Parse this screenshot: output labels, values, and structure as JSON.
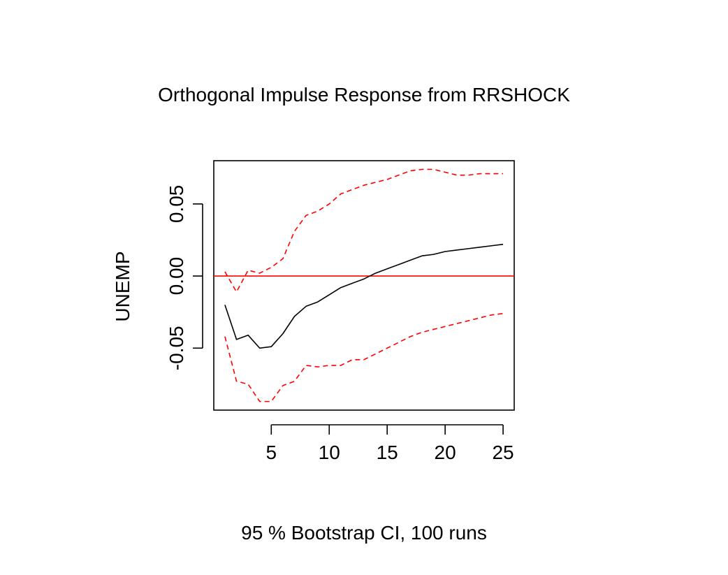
{
  "chart_data": {
    "type": "line",
    "title": "Orthogonal Impulse Response from RRSHOCK",
    "xlabel": "95 % Bootstrap CI,  100 runs",
    "ylabel": "UNEMP",
    "xlim": [
      0.04,
      25.96
    ],
    "ylim": [
      -0.093,
      0.08
    ],
    "x_ticks": [
      5,
      10,
      15,
      20,
      25
    ],
    "y_ticks": [
      -0.05,
      0.0,
      0.05
    ],
    "x_tick_labels": [
      "5",
      "10",
      "15",
      "20",
      "25"
    ],
    "y_tick_labels": [
      "-0.05",
      "0.00",
      "0.05"
    ],
    "grid": false,
    "legend": "none",
    "x": [
      1,
      2,
      3,
      4,
      5,
      6,
      7,
      8,
      9,
      10,
      11,
      12,
      13,
      14,
      15,
      16,
      17,
      18,
      19,
      20,
      21,
      22,
      23,
      24,
      25
    ],
    "series": [
      {
        "role": "irf",
        "style": "solid",
        "color": "#000000",
        "values": [
          -0.02,
          -0.044,
          -0.041,
          -0.05,
          -0.049,
          -0.04,
          -0.028,
          -0.021,
          -0.018,
          -0.013,
          -0.008,
          -0.005,
          -0.002,
          0.002,
          0.005,
          0.008,
          0.011,
          0.014,
          0.015,
          0.017,
          0.018,
          0.019,
          0.02,
          0.021,
          0.022
        ]
      },
      {
        "role": "upper",
        "style": "dashed",
        "color": "#ff0000",
        "values": [
          0.003,
          -0.011,
          0.004,
          0.002,
          0.006,
          0.012,
          0.031,
          0.042,
          0.045,
          0.05,
          0.057,
          0.06,
          0.063,
          0.065,
          0.067,
          0.07,
          0.073,
          0.074,
          0.074,
          0.072,
          0.07,
          0.07,
          0.071,
          0.071,
          0.071
        ]
      },
      {
        "role": "lower",
        "style": "dashed",
        "color": "#ff0000",
        "values": [
          -0.042,
          -0.073,
          -0.075,
          -0.087,
          -0.087,
          -0.076,
          -0.073,
          -0.062,
          -0.063,
          -0.062,
          -0.062,
          -0.058,
          -0.058,
          -0.054,
          -0.05,
          -0.046,
          -0.042,
          -0.039,
          -0.037,
          -0.035,
          -0.033,
          -0.031,
          -0.029,
          -0.027,
          -0.026
        ]
      }
    ],
    "reference_line": {
      "y": 0,
      "color": "#ff0000"
    }
  }
}
